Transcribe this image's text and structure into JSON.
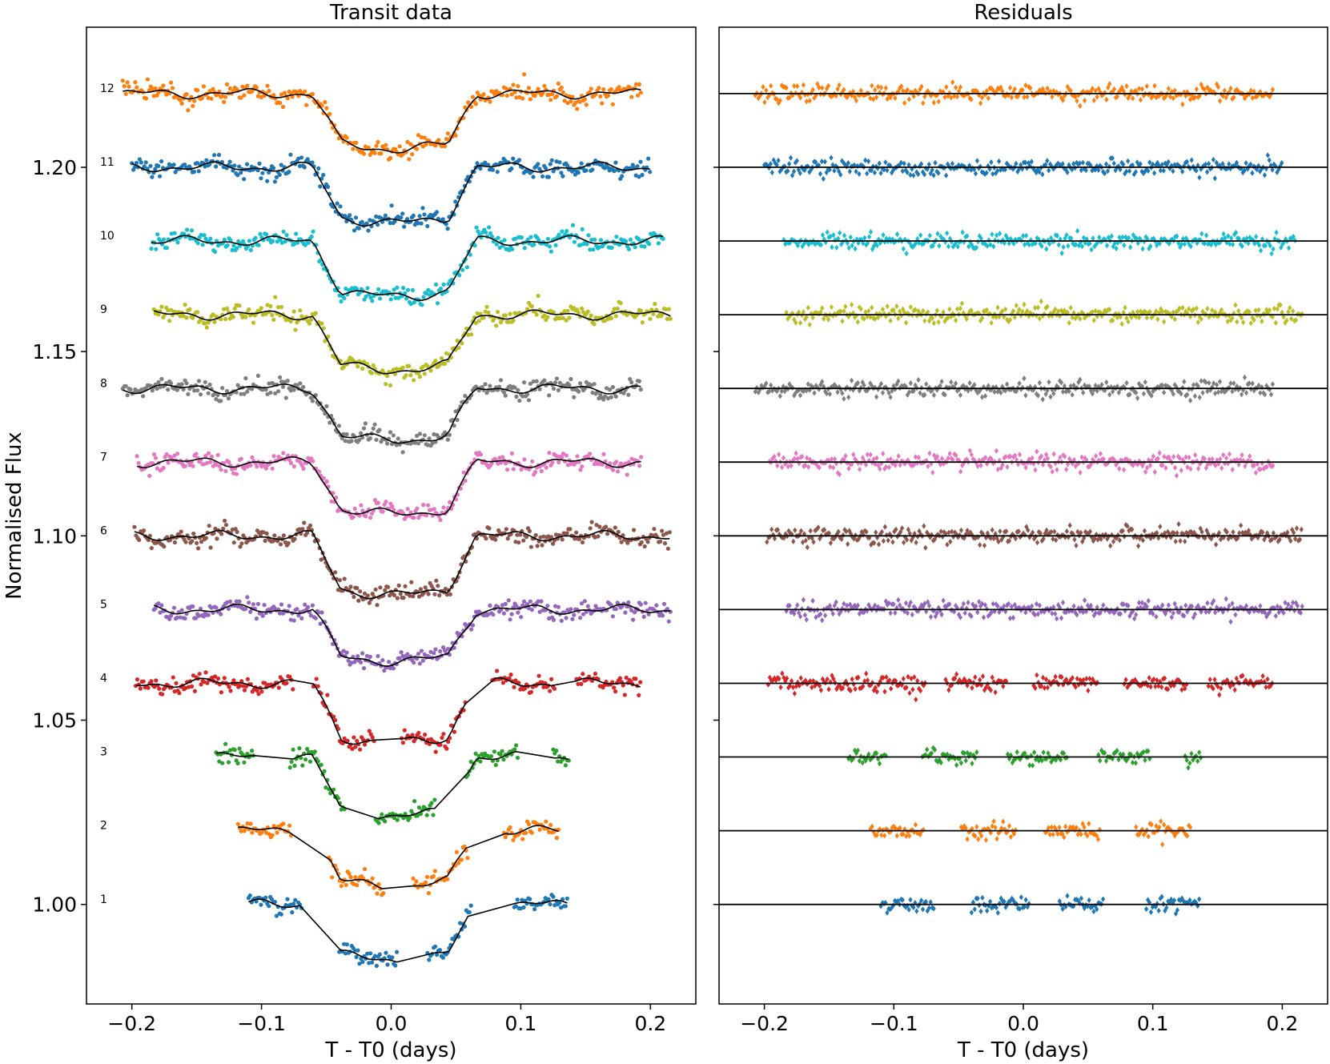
{
  "chart_data": [
    {
      "type": "scatter",
      "title": "Transit data",
      "xlabel": "T - T0 (days)",
      "ylabel": "Normalised Flux",
      "xlim": [
        -0.235,
        0.235
      ],
      "ylim": [
        0.973,
        1.238
      ],
      "xticks": [
        -0.2,
        -0.1,
        0.0,
        0.1,
        0.2
      ],
      "xtick_labels": [
        "−0.2",
        "−0.1",
        "0.0",
        "0.1",
        "0.2"
      ],
      "yticks": [
        1.0,
        1.05,
        1.1,
        1.15,
        1.2
      ],
      "ytick_labels": [
        "1.00",
        "1.05",
        "1.10",
        "1.15",
        "1.20"
      ],
      "transit_ingress": -0.05,
      "transit_egress": 0.055,
      "series": [
        {
          "label": "1",
          "color": "#1f77b4",
          "offset": 1.0,
          "depth": 0.015,
          "windows": [
            [
              -0.11,
              -0.068
            ],
            [
              -0.04,
              0.005
            ],
            [
              0.028,
              0.062
            ],
            [
              0.095,
              0.137
            ]
          ]
        },
        {
          "label": "2",
          "color": "#ff7f0e",
          "offset": 1.02,
          "depth": 0.015,
          "windows": [
            [
              -0.118,
              -0.077
            ],
            [
              -0.048,
              -0.005
            ],
            [
              0.017,
              0.06
            ],
            [
              0.087,
              0.13
            ]
          ]
        },
        {
          "label": "3",
          "color": "#2ca02c",
          "offset": 1.04,
          "depth": 0.016,
          "windows": [
            [
              -0.135,
              -0.105
            ],
            [
              -0.078,
              -0.035
            ],
            [
              -0.012,
              0.034
            ],
            [
              0.058,
              0.098
            ],
            [
              0.125,
              0.138
            ]
          ]
        },
        {
          "label": "4",
          "color": "#d62728",
          "offset": 1.06,
          "depth": 0.016,
          "windows": [
            [
              -0.197,
              -0.125
            ],
            [
              -0.125,
              -0.075
            ],
            [
              -0.06,
              -0.013
            ],
            [
              0.008,
              0.058
            ],
            [
              0.078,
              0.127
            ],
            [
              0.143,
              0.193
            ]
          ]
        },
        {
          "label": "5",
          "color": "#9467bd",
          "offset": 1.08,
          "depth": 0.014,
          "windows": [
            [
              -0.183,
              0.216
            ]
          ]
        },
        {
          "label": "6",
          "color": "#8c564b",
          "offset": 1.1,
          "depth": 0.016,
          "windows": [
            [
              -0.198,
              0.216
            ]
          ]
        },
        {
          "label": "7",
          "color": "#e377c2",
          "offset": 1.12,
          "depth": 0.014,
          "windows": [
            [
              -0.196,
              0.193
            ]
          ]
        },
        {
          "label": "8",
          "color": "#7f7f7f",
          "offset": 1.14,
          "depth": 0.014,
          "windows": [
            [
              -0.207,
              0.193
            ]
          ]
        },
        {
          "label": "9",
          "color": "#bcbd22",
          "offset": 1.16,
          "depth": 0.015,
          "windows": [
            [
              -0.183,
              0.216
            ]
          ]
        },
        {
          "label": "10",
          "color": "#17becf",
          "offset": 1.18,
          "depth": 0.015,
          "windows": [
            [
              -0.185,
              0.21
            ]
          ]
        },
        {
          "label": "11",
          "color": "#1f77b4",
          "offset": 1.2,
          "depth": 0.015,
          "windows": [
            [
              -0.2,
              0.2
            ]
          ]
        },
        {
          "label": "12",
          "color": "#ff7f0e",
          "offset": 1.22,
          "depth": 0.015,
          "windows": [
            [
              -0.207,
              0.193
            ]
          ]
        }
      ]
    },
    {
      "type": "scatter",
      "title": "Residuals",
      "xlabel": "T - T0 (days)",
      "xlim": [
        -0.235,
        0.235
      ],
      "xticks": [
        -0.2,
        -0.1,
        0.0,
        0.1,
        0.2
      ],
      "xtick_labels": [
        "−0.2",
        "−0.1",
        "0.0",
        "0.1",
        "0.2"
      ],
      "marker": "diamond",
      "baselines": [
        1.0,
        1.02,
        1.04,
        1.06,
        1.08,
        1.1,
        1.12,
        1.14,
        1.16,
        1.18,
        1.2,
        1.22
      ]
    }
  ]
}
